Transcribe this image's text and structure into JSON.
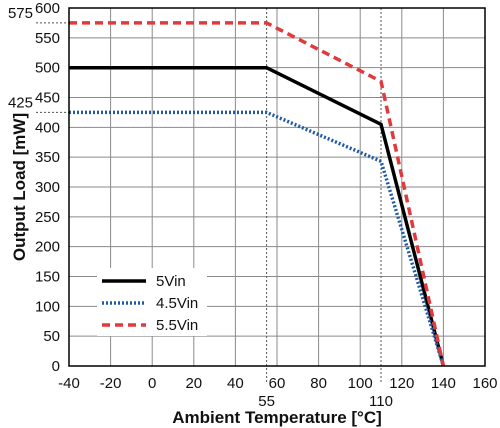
{
  "chart_data": {
    "type": "line",
    "title": "",
    "xlabel": "Ambient Temperature [°C]",
    "ylabel": "Output Load [mW]",
    "xlim": [
      -40,
      160
    ],
    "ylim": [
      0,
      600
    ],
    "x_ticks": [
      -40,
      -20,
      0,
      20,
      40,
      60,
      80,
      100,
      120,
      140,
      160
    ],
    "y_ticks": [
      0,
      50,
      100,
      150,
      200,
      250,
      300,
      350,
      400,
      450,
      500,
      550,
      600
    ],
    "grid": true,
    "legend_position": "bottom-left",
    "series": [
      {
        "name": "5Vin",
        "color": "#000000",
        "style": "solid",
        "x": [
          -40,
          55,
          110,
          140
        ],
        "y": [
          500,
          500,
          405,
          0
        ]
      },
      {
        "name": "4.5Vin",
        "color": "#1f5aa6",
        "style": "dotted",
        "x": [
          -40,
          55,
          110,
          140
        ],
        "y": [
          425,
          425,
          343,
          0
        ]
      },
      {
        "name": "5.5Vin",
        "color": "#e03a3e",
        "style": "dashed",
        "x": [
          -40,
          55,
          110,
          140
        ],
        "y": [
          575,
          575,
          477,
          0
        ]
      }
    ],
    "annotations": {
      "y_refs": [
        575,
        425
      ],
      "x_refs": [
        55,
        110
      ]
    }
  }
}
